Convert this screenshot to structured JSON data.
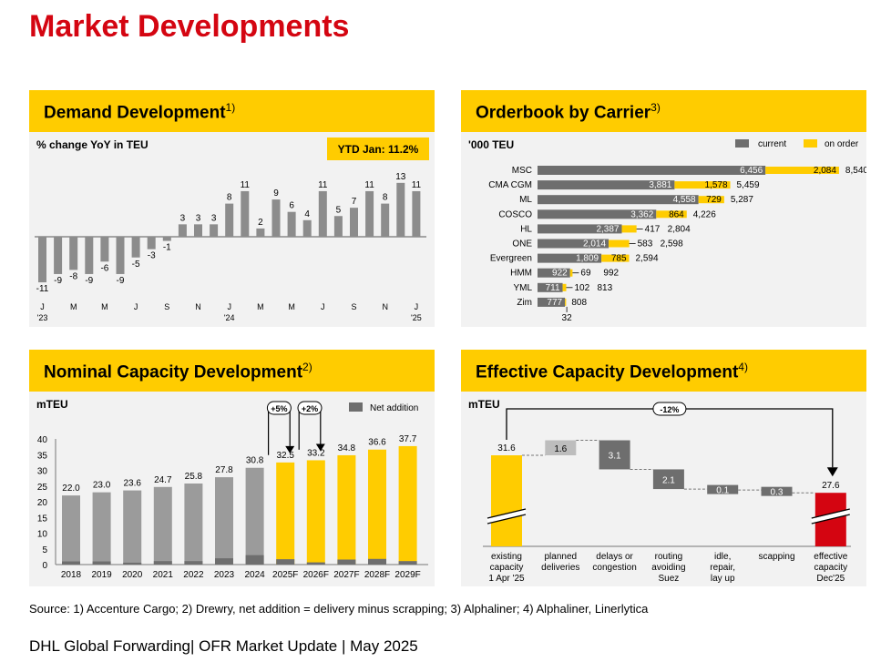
{
  "page": {
    "title": "Market Developments",
    "source": "Source: 1) Accenture Cargo; 2) Drewry, net addition = delivery minus scrapping; 3) Alphaliner; 4) Alphaliner, Linerlytica",
    "footer": "DHL Global Forwarding| OFR Market Update | May 2025"
  },
  "colors": {
    "yellow": "#ffcc00",
    "grey": "#9b9b9b",
    "dark": "#6e6e6e",
    "red": "#d40511",
    "panel": "#f2f2f2"
  },
  "chart_data": [
    {
      "type": "bar",
      "title": "Demand Development",
      "footnote": "1)",
      "ylabel": "% change YoY in TEU",
      "badge": "YTD Jan: 11.2%",
      "values": [
        -11,
        -9,
        -8,
        -9,
        -6,
        -9,
        -5,
        -3,
        -1,
        3,
        3,
        3,
        8,
        11,
        2,
        9,
        6,
        4,
        11,
        5,
        7,
        11,
        8,
        13,
        11
      ],
      "tick_labels": [
        {
          "i": 0,
          "text": "J"
        },
        {
          "i": 2,
          "text": "M"
        },
        {
          "i": 4,
          "text": "M"
        },
        {
          "i": 6,
          "text": "J"
        },
        {
          "i": 8,
          "text": "S"
        },
        {
          "i": 10,
          "text": "N"
        },
        {
          "i": 12,
          "text": "J"
        },
        {
          "i": 14,
          "text": "M"
        },
        {
          "i": 16,
          "text": "M"
        },
        {
          "i": 18,
          "text": "J"
        },
        {
          "i": 20,
          "text": "S"
        },
        {
          "i": 22,
          "text": "N"
        },
        {
          "i": 24,
          "text": "J"
        }
      ],
      "year_labels": [
        {
          "i": 0,
          "text": "'23"
        },
        {
          "i": 12,
          "text": "'24"
        },
        {
          "i": 24,
          "text": "'25"
        }
      ]
    },
    {
      "type": "bar",
      "title": "Orderbook by Carrier",
      "footnote": "3)",
      "unit": "'000 TEU",
      "legend": [
        "current",
        "on order"
      ],
      "legend_position": "top-right",
      "categories": [
        "MSC",
        "CMA CGM",
        "ML",
        "COSCO",
        "HL",
        "ONE",
        "Evergreen",
        "HMM",
        "YML",
        "Zim"
      ],
      "series": [
        {
          "name": "current",
          "values": [
            6456,
            3881,
            4558,
            3362,
            2387,
            2014,
            1809,
            922,
            711,
            777
          ]
        },
        {
          "name": "on order",
          "values": [
            2084,
            1578,
            729,
            864,
            417,
            583,
            785,
            69,
            102,
            32
          ]
        }
      ],
      "current_labels": [
        "6,456",
        "3,881",
        "4,558",
        "3,362",
        "2,387",
        "2,014",
        "1,809",
        "922",
        "711",
        "777"
      ],
      "order_labels": [
        "2,084",
        "1,578",
        "729",
        "864",
        "417",
        "583",
        "785",
        "69",
        "102",
        "32"
      ],
      "totals": [
        "8,540",
        "5,459",
        "5,287",
        "4,226",
        "2,804",
        "2,598",
        "2,594",
        "992",
        "813",
        "808"
      ]
    },
    {
      "type": "bar",
      "title": "Nominal Capacity Development",
      "footnote": "2)",
      "ylabel": "mTEU",
      "ylim": [
        0,
        40
      ],
      "yticks": [
        0,
        5,
        10,
        15,
        20,
        25,
        30,
        35,
        40
      ],
      "legend": [
        "Net addition"
      ],
      "categories": [
        "2018",
        "2019",
        "2020",
        "2021",
        "2022",
        "2023",
        "2024",
        "2025F",
        "2026F",
        "2027F",
        "2028F",
        "2029F"
      ],
      "values": [
        22.0,
        23.0,
        23.6,
        24.7,
        25.8,
        27.8,
        30.8,
        32.5,
        33.2,
        34.8,
        36.6,
        37.7
      ],
      "value_labels": [
        "22.0",
        "23.0",
        "23.6",
        "24.7",
        "25.8",
        "27.8",
        "30.8",
        "32.5",
        "33.2",
        "34.8",
        "36.6",
        "37.7"
      ],
      "net_addition": [
        1.0,
        1.0,
        0.6,
        1.1,
        1.1,
        2.0,
        3.0,
        1.7,
        0.7,
        1.6,
        1.8,
        1.1
      ],
      "forecast_from_index": 7,
      "annotations": [
        {
          "text": "+5%",
          "from": 6,
          "to": 7
        },
        {
          "text": "+2%",
          "from": 7,
          "to": 8
        }
      ]
    },
    {
      "type": "bar",
      "title": "Effective Capacity Development",
      "footnote": "4)",
      "ylabel": "mTEU",
      "categories": [
        "existing capacity 1 Apr '25",
        "planned deliveries",
        "delays or congestion",
        "routing avoiding Suez",
        "idle, repair, lay up",
        "scapping",
        "effective capacity Dec'25"
      ],
      "category_lines": [
        [
          "existing",
          "capacity",
          "1 Apr '25"
        ],
        [
          "planned",
          "deliveries"
        ],
        [
          "delays or",
          "congestion"
        ],
        [
          "routing",
          "avoiding",
          "Suez"
        ],
        [
          "idle,",
          "repair,",
          "lay up"
        ],
        [
          "scapping"
        ],
        [
          "effective",
          "capacity",
          "Dec'25"
        ]
      ],
      "values": [
        31.6,
        1.6,
        -3.1,
        -2.1,
        -0.1,
        -0.3,
        27.6
      ],
      "value_labels": [
        "31.6",
        "1.6",
        "3.1",
        "2.1",
        "0.1",
        "0.3",
        "27.6"
      ],
      "change_label": "-12%"
    }
  ]
}
